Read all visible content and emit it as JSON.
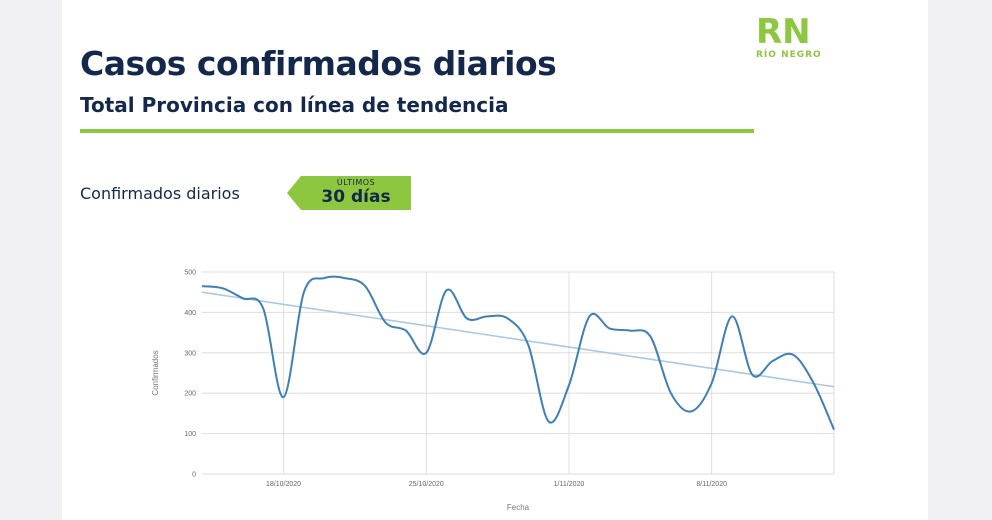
{
  "header": {
    "title": "Casos confirmados diarios",
    "subtitle": "Total Provincia con línea de tendencia"
  },
  "logo": {
    "mark": "RN",
    "text": "RÍO NEGRO",
    "color": "#8dc63f"
  },
  "section": {
    "label": "Confirmados diarios",
    "badge_top": "ÚLTIMOS",
    "badge_main": "30 días",
    "badge_color": "#8dc63f"
  },
  "colors": {
    "title": "#14284b",
    "accent": "#8dc63f",
    "line": "#3f7fb5",
    "trend": "#a9c9e2"
  },
  "chart_data": {
    "type": "line",
    "xlabel": "Fecha",
    "ylabel": "Confirmados",
    "ylim": [
      0,
      500
    ],
    "yticks": [
      0,
      100,
      200,
      300,
      400,
      500
    ],
    "x": [
      "14/10/2020",
      "15/10/2020",
      "16/10/2020",
      "17/10/2020",
      "18/10/2020",
      "19/10/2020",
      "20/10/2020",
      "21/10/2020",
      "22/10/2020",
      "23/10/2020",
      "24/10/2020",
      "25/10/2020",
      "26/10/2020",
      "27/10/2020",
      "28/10/2020",
      "29/10/2020",
      "30/10/2020",
      "31/10/2020",
      "1/11/2020",
      "2/11/2020",
      "3/11/2020",
      "4/11/2020",
      "5/11/2020",
      "6/11/2020",
      "7/11/2020",
      "8/11/2020",
      "9/11/2020",
      "10/11/2020",
      "11/11/2020",
      "12/11/2020",
      "13/11/2020",
      "14/11/2020"
    ],
    "xtick_labels": [
      "18/10/2020",
      "25/10/2020",
      "1/11/2020",
      "8/11/2020"
    ],
    "xtick_index": [
      4,
      11,
      18,
      25
    ],
    "grid": true,
    "series": [
      {
        "values": [
          465,
          460,
          435,
          410,
          190,
          450,
          485,
          485,
          465,
          375,
          355,
          300,
          455,
          385,
          390,
          385,
          320,
          130,
          220,
          390,
          360,
          355,
          340,
          200,
          155,
          225,
          390,
          245,
          280,
          295,
          225,
          110
        ]
      },
      {
        "values": [
          450,
          443,
          435,
          428,
          420,
          412,
          405,
          397,
          390,
          382,
          375,
          367,
          360,
          352,
          344,
          337,
          329,
          322,
          314,
          307,
          299,
          291,
          284,
          276,
          269,
          261,
          254,
          246,
          238,
          231,
          223,
          216
        ]
      }
    ]
  }
}
